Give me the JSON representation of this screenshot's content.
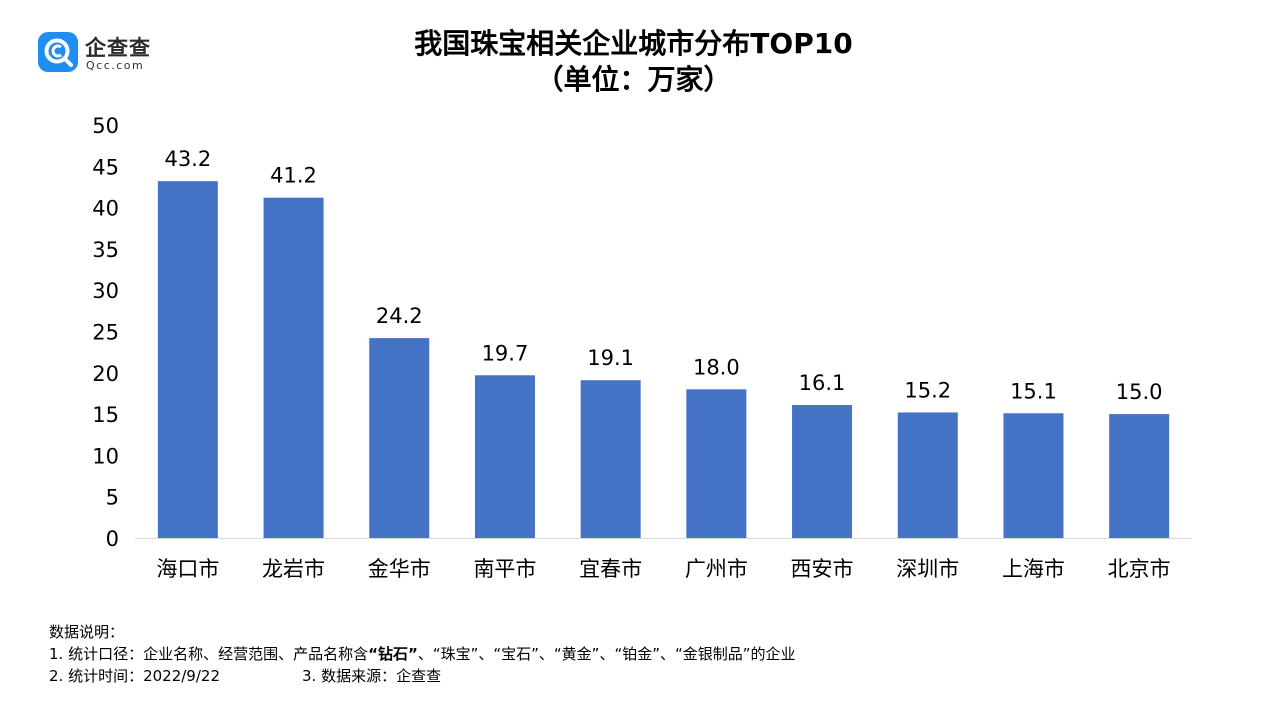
{
  "logo": {
    "text": "企查查",
    "sub": "Qcc.com",
    "brand_color": "#1f8ef1"
  },
  "title": {
    "line1": "我国珠宝相关企业城市分布TOP10",
    "line2": "（单位：万家）"
  },
  "chart_data": {
    "type": "bar",
    "categories": [
      "海口市",
      "龙岩市",
      "金华市",
      "南平市",
      "宜春市",
      "广州市",
      "西安市",
      "深圳市",
      "上海市",
      "北京市"
    ],
    "values": [
      43.2,
      41.2,
      24.2,
      19.7,
      19.1,
      18.0,
      16.1,
      15.2,
      15.1,
      15.0
    ],
    "value_labels": [
      "43.2",
      "41.2",
      "24.2",
      "19.7",
      "19.1",
      "18.0",
      "16.1",
      "15.2",
      "15.1",
      "15.0"
    ],
    "ylim": [
      0,
      50
    ],
    "yticks": [
      0,
      5,
      10,
      15,
      20,
      25,
      30,
      35,
      40,
      45,
      50
    ],
    "grid": false,
    "bar_color": "#4472c4"
  },
  "notes": {
    "heading": "数据说明：",
    "line1_prefix": "1. 统计口径：企业名称、经营范围、产品名称含",
    "line1_bold": "“钻石”",
    "line1_suffix": "、“珠宝”、“宝石”、“黄金”、“铂金”、“金银制品”的企业",
    "line2_a": "2. 统计时间：2022/9/22",
    "line2_b": "3. 数据来源：企查查"
  }
}
